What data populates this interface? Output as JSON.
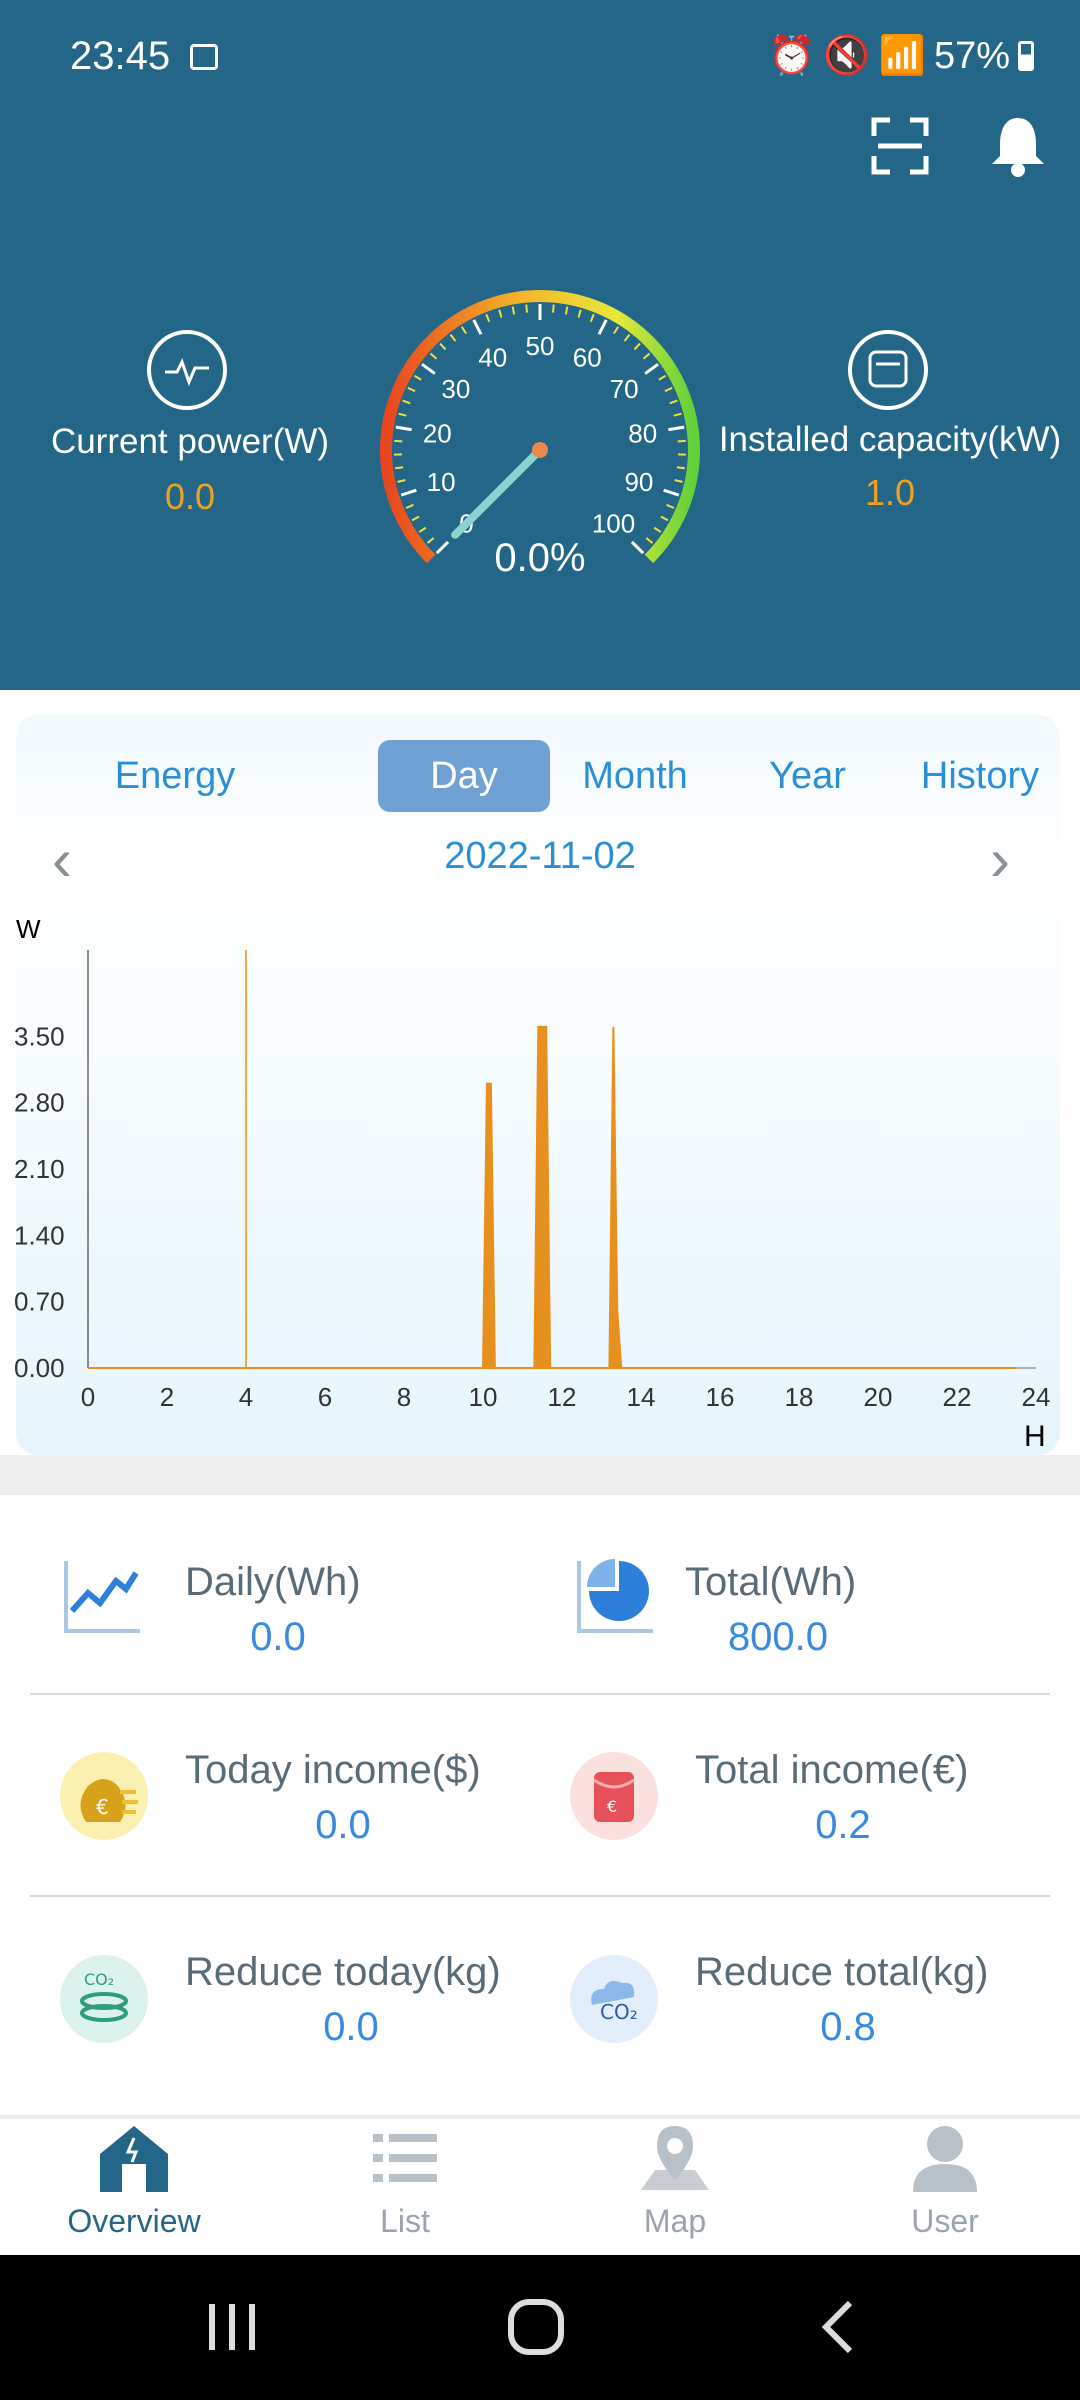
{
  "status": {
    "time": "23:45",
    "battery": "57%"
  },
  "header": {
    "current_power_label": "Current power(W)",
    "current_power_value": "0.0",
    "installed_capacity_label": "Installed capacity(kW)",
    "installed_capacity_value": "1.0",
    "gauge_percent": "0.0%",
    "gauge_ticks": [
      "0",
      "10",
      "20",
      "30",
      "40",
      "50",
      "60",
      "70",
      "80",
      "90",
      "100"
    ],
    "gauge_level": 0
  },
  "tabs": [
    {
      "label": "Energy"
    },
    {
      "label": "Day"
    },
    {
      "label": "Month"
    },
    {
      "label": "Year"
    },
    {
      "label": "History"
    }
  ],
  "date": "2022-11-02",
  "chart_data": {
    "type": "area",
    "ylabel": "W",
    "xlabel": "H",
    "ylim": [
      0,
      4.2
    ],
    "xlim": [
      0,
      24
    ],
    "yticks": [
      "0.00",
      "0.70",
      "1.40",
      "2.10",
      "2.80",
      "3.50"
    ],
    "xticks": [
      "0",
      "2",
      "4",
      "6",
      "8",
      "10",
      "12",
      "14",
      "16",
      "18",
      "20",
      "22",
      "24"
    ],
    "series": [
      {
        "x": [
          0,
          10.0,
          10.1,
          10.2,
          10.3,
          11.3,
          11.4,
          11.6,
          11.7,
          13.2,
          13.3,
          13.4,
          13.5,
          23.5
        ],
        "values": [
          0,
          0,
          3.0,
          3.0,
          0,
          0,
          3.6,
          3.6,
          0,
          0,
          3.6,
          0.6,
          0,
          0
        ]
      }
    ],
    "marker_x": 4,
    "color": "#e8901e"
  },
  "kpis": [
    {
      "label": "Daily(Wh)",
      "value": "0.0",
      "icon": "line-chart-icon"
    },
    {
      "label": "Total(Wh)",
      "value": "800.0",
      "icon": "pie-chart-icon"
    },
    {
      "label": "Today income($)",
      "value": "0.0",
      "icon": "money-bag-icon"
    },
    {
      "label": "Total income(€)",
      "value": "0.2",
      "icon": "red-envelope-icon"
    },
    {
      "label": "Reduce today(kg)",
      "value": "0.0",
      "icon": "co2-coins-icon"
    },
    {
      "label": "Reduce total(kg)",
      "value": "0.8",
      "icon": "co2-cloud-icon"
    }
  ],
  "nav": [
    {
      "label": "Overview"
    },
    {
      "label": "List"
    },
    {
      "label": "Map"
    },
    {
      "label": "User"
    }
  ]
}
